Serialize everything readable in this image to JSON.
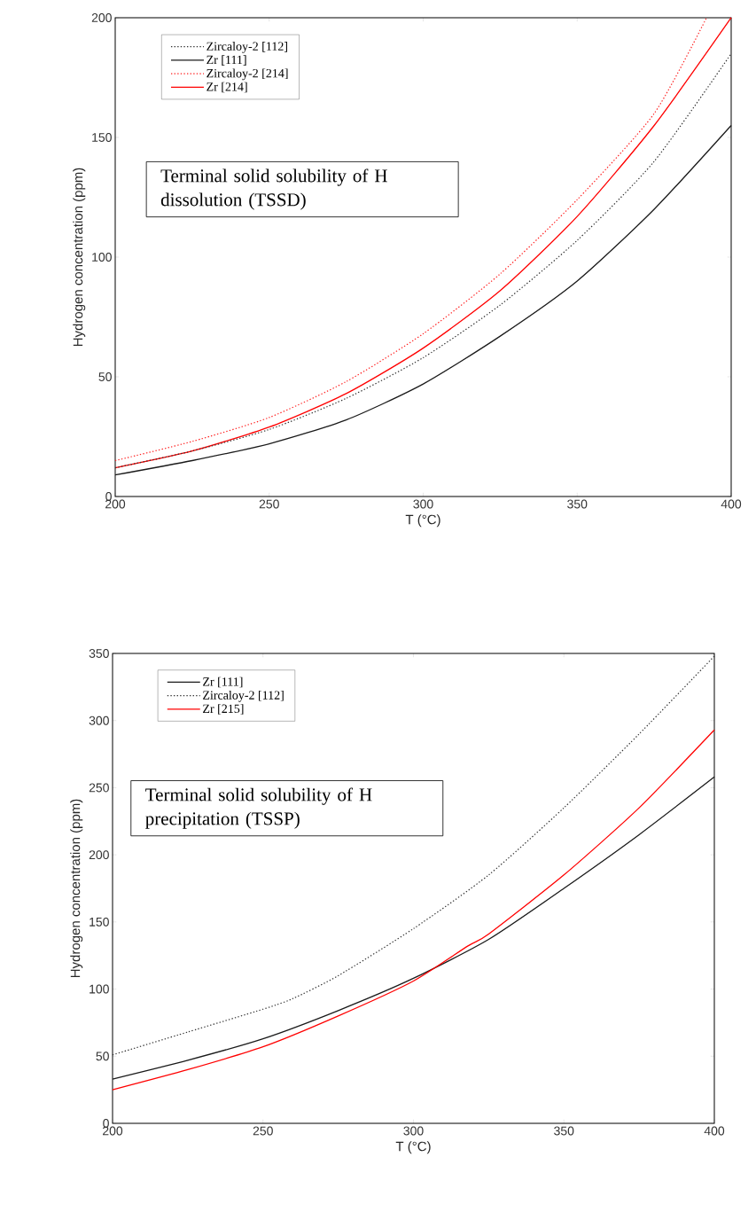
{
  "chart_data": [
    {
      "type": "line",
      "xlabel": "T (°C)",
      "ylabel": "Hydrogen concentration (ppm)",
      "xlim": [
        200,
        400
      ],
      "ylim": [
        0,
        200
      ],
      "xticks": [
        200,
        250,
        300,
        350,
        400
      ],
      "yticks": [
        0,
        50,
        100,
        150,
        200
      ],
      "legend": "top left",
      "marker": "none",
      "grid": false,
      "annotations": [
        "Terminal solid solubility of H dissolution (TSSD)"
      ],
      "series": [
        {
          "name": "Zircaloy-2 [112]",
          "color": "#333333",
          "line_style": "dotted",
          "x": [
            200,
            225,
            250,
            275,
            300,
            325,
            350,
            375,
            400
          ],
          "values": [
            12,
            19,
            28,
            41,
            58,
            80,
            107,
            140,
            185
          ]
        },
        {
          "name": "Zr [111]",
          "color": "#1a1a1a",
          "line_style": "solid",
          "x": [
            200,
            225,
            250,
            275,
            300,
            325,
            350,
            375,
            400
          ],
          "values": [
            9,
            15,
            22,
            32,
            47,
            67,
            90,
            120,
            155
          ]
        },
        {
          "name": "Zircaloy-2 [214]",
          "color": "#ff2020",
          "line_style": "dotted",
          "x": [
            200,
            225,
            250,
            275,
            300,
            325,
            350,
            375,
            392
          ],
          "values": [
            15,
            23,
            33,
            48,
            68,
            93,
            124,
            160,
            200
          ]
        },
        {
          "name": "Zr [214]",
          "color": "#ff0000",
          "line_style": "solid",
          "x": [
            200,
            225,
            250,
            275,
            300,
            325,
            350,
            375,
            400
          ],
          "values": [
            12,
            19,
            29,
            43,
            62,
            86,
            117,
            155,
            200
          ]
        }
      ]
    },
    {
      "type": "line",
      "xlabel": "T (°C)",
      "ylabel": "Hydrogen concentration (ppm)",
      "xlim": [
        200,
        400
      ],
      "ylim": [
        0,
        350
      ],
      "xticks": [
        200,
        250,
        300,
        350,
        400
      ],
      "yticks": [
        0,
        50,
        100,
        150,
        200,
        250,
        300,
        350
      ],
      "legend": "top left",
      "marker": "none",
      "grid": false,
      "annotations": [
        "Terminal solid solubility of H precipitation (TSSP)"
      ],
      "series": [
        {
          "name": "Zr [111]",
          "color": "#1a1a1a",
          "line_style": "solid",
          "x": [
            200,
            225,
            250,
            275,
            300,
            325,
            350,
            375,
            400
          ],
          "values": [
            33,
            47,
            63,
            84,
            108,
            137,
            175,
            215,
            258
          ]
        },
        {
          "name": "Zircaloy-2 [112]",
          "color": "#333333",
          "line_style": "dotted",
          "x": [
            200,
            225,
            250,
            260,
            275,
            300,
            325,
            350,
            375,
            400
          ],
          "values": [
            51,
            68,
            85,
            93,
            110,
            145,
            185,
            235,
            290,
            348
          ]
        },
        {
          "name": "Zr [215]",
          "color": "#ff0000",
          "line_style": "solid",
          "x": [
            200,
            225,
            250,
            275,
            300,
            318,
            325,
            350,
            375,
            400
          ],
          "values": [
            25,
            40,
            57,
            80,
            106,
            132,
            141,
            185,
            235,
            293
          ]
        }
      ]
    }
  ]
}
